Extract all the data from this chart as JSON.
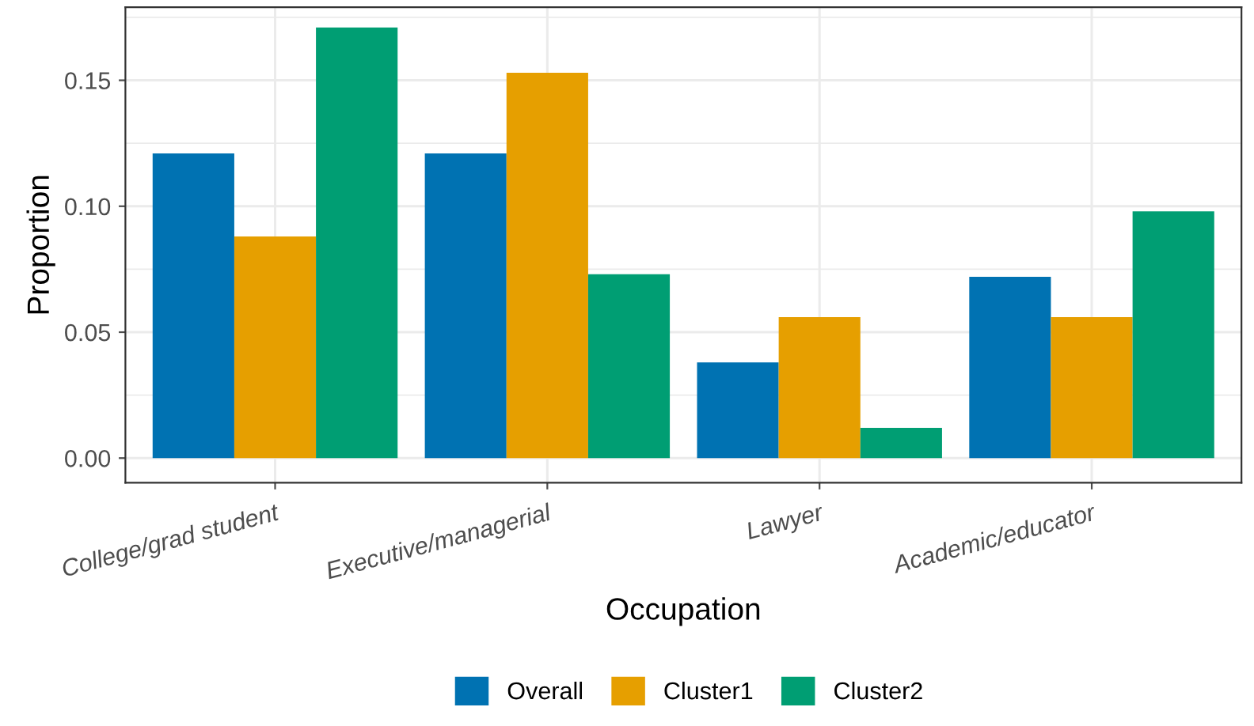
{
  "chart_data": {
    "type": "bar",
    "xlabel": "Occupation",
    "ylabel": "Proportion",
    "categories": [
      "College/grad student",
      "Executive/managerial",
      "Lawyer",
      "Academic/educator"
    ],
    "series": [
      {
        "name": "Overall",
        "color": "#0072b2",
        "values": [
          0.121,
          0.121,
          0.038,
          0.072
        ]
      },
      {
        "name": "Cluster1",
        "color": "#e69f00",
        "values": [
          0.088,
          0.153,
          0.056,
          0.056
        ]
      },
      {
        "name": "Cluster2",
        "color": "#009e73",
        "values": [
          0.171,
          0.073,
          0.012,
          0.098
        ]
      }
    ],
    "ylim": [
      -0.0098,
      0.179
    ],
    "yticks": [
      {
        "value": 0,
        "label": "0.00"
      },
      {
        "value": 0.05,
        "label": "0.05"
      },
      {
        "value": 0.1,
        "label": "0.10"
      },
      {
        "value": 0.15,
        "label": "0.15"
      }
    ],
    "grid": true,
    "legend": "bottom"
  }
}
